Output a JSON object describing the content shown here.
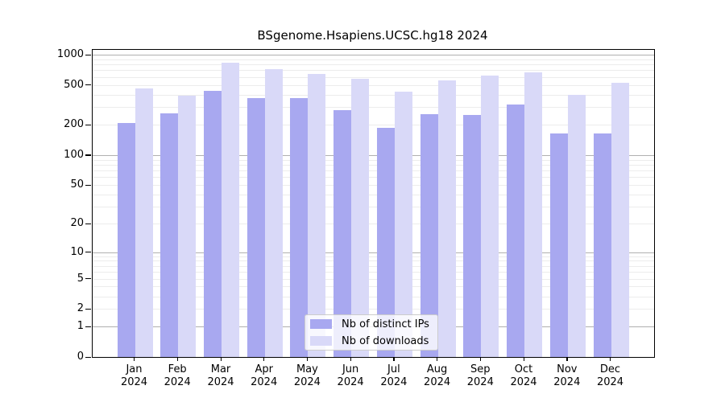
{
  "title": "BSgenome.Hsapiens.UCSC.hg18 2024",
  "legend": {
    "items": [
      {
        "label": "Nb of distinct IPs",
        "color": "#a8a8f0"
      },
      {
        "label": "Nb of downloads",
        "color": "#d9d9f8"
      }
    ]
  },
  "axes": {
    "yticks": [
      "1000",
      "500",
      "200",
      "100",
      "50",
      "20",
      "10",
      "5",
      "2",
      "1",
      "0"
    ],
    "grid_major_color": "#b0b0b0",
    "grid_minor_color": "#ececec"
  },
  "chart_data": {
    "type": "bar",
    "title": "BSgenome.Hsapiens.UCSC.hg18 2024",
    "categories": [
      "Jan 2024",
      "Feb 2024",
      "Mar 2024",
      "Apr 2024",
      "May 2024",
      "Jun 2024",
      "Jul 2024",
      "Aug 2024",
      "Sep 2024",
      "Oct 2024",
      "Nov 2024",
      "Dec 2024"
    ],
    "series": [
      {
        "name": "Nb of distinct IPs",
        "color": "#a8a8f0",
        "values": [
          209,
          259,
          437,
          371,
          371,
          283,
          188,
          258,
          250,
          320,
          166,
          164
        ]
      },
      {
        "name": "Nb of downloads",
        "color": "#d9d9f8",
        "values": [
          462,
          393,
          826,
          723,
          648,
          576,
          432,
          561,
          620,
          668,
          399,
          526
        ]
      }
    ],
    "yscale": "log10(1+x)",
    "yticks": [
      1000,
      500,
      200,
      100,
      50,
      20,
      10,
      5,
      2,
      1,
      0
    ],
    "ylim": [
      0,
      1100
    ],
    "grid": true,
    "legend_position": "lower center"
  }
}
